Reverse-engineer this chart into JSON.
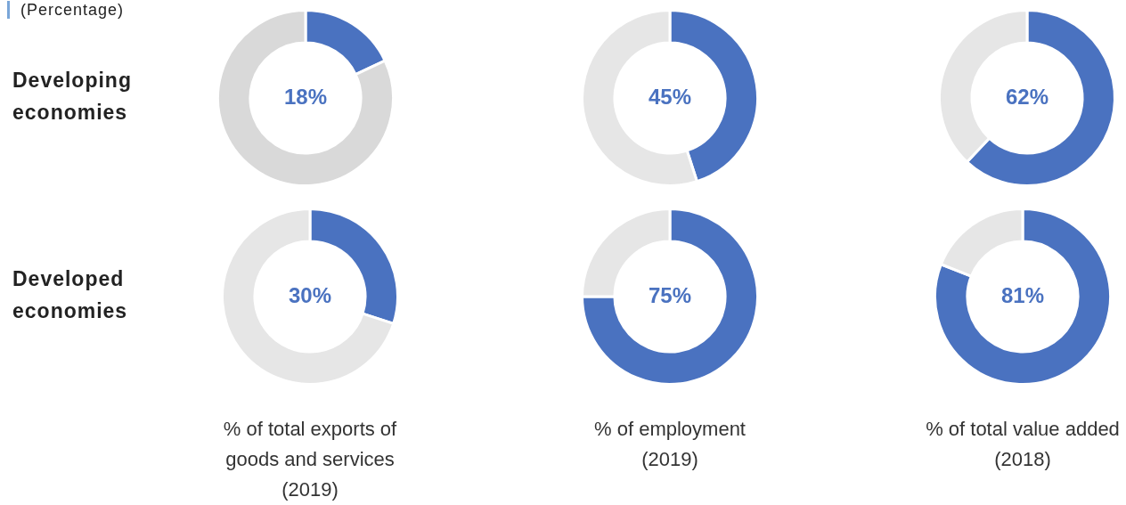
{
  "chart_data": [
    {
      "type": "donut",
      "subtitle": "(Percentage)",
      "ylabel": "Developing economies",
      "categories": [
        null,
        null
      ],
      "values": [
        18,
        82
      ],
      "colors": [
        "#4a72c0",
        "#d9d9d9"
      ],
      "value_labels": [
        "18%",
        null
      ]
    },
    {
      "type": "donut",
      "categories": [
        null,
        null
      ],
      "values": [
        45,
        55
      ],
      "colors": [
        "#4a72c0",
        "#e6e6e6"
      ],
      "value_labels": [
        "45%",
        null
      ]
    },
    {
      "type": "donut",
      "categories": [
        null,
        null
      ],
      "values": [
        62,
        38
      ],
      "colors": [
        "#4a72c0",
        "#e6e6e6"
      ],
      "value_labels": [
        "62%",
        null
      ]
    },
    {
      "type": "donut",
      "ylabel": "Developed economies",
      "xlabel": "% of total exports of goods and services (2019)",
      "categories": [
        null,
        null
      ],
      "values": [
        30,
        70
      ],
      "colors": [
        "#4a72c0",
        "#e6e6e6"
      ],
      "value_labels": [
        "30%",
        null
      ]
    },
    {
      "type": "donut",
      "xlabel": "% of employment (2019)",
      "categories": [
        null,
        null
      ],
      "values": [
        75,
        25
      ],
      "colors": [
        "#4a72c0",
        "#e6e6e6"
      ],
      "value_labels": [
        "75%",
        null
      ]
    },
    {
      "type": "donut",
      "xlabel": "% of total value added (2018)",
      "categories": [
        null,
        null
      ],
      "values": [
        81,
        19
      ],
      "colors": [
        "#4a72c0",
        "#e6e6e6"
      ],
      "value_labels": [
        "81%",
        null
      ]
    }
  ]
}
